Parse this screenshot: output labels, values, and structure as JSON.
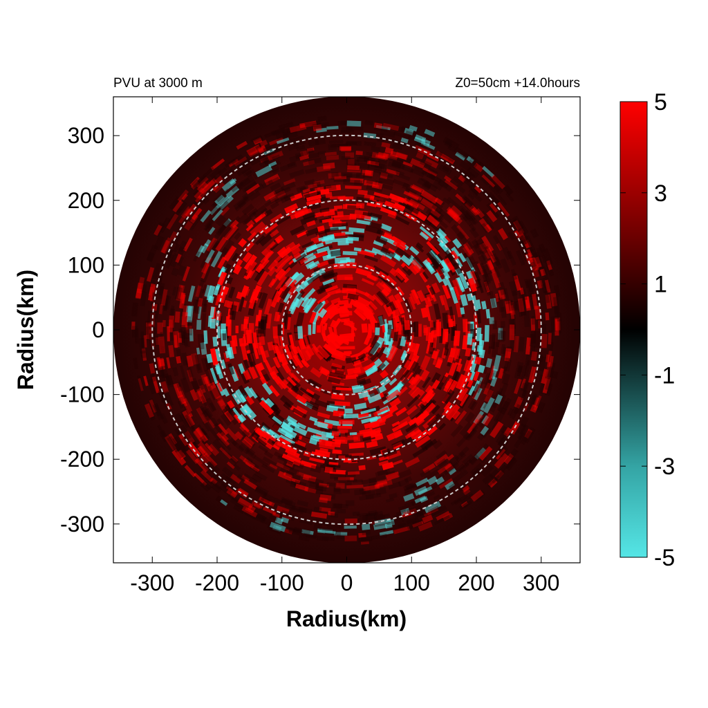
{
  "chart_data": {
    "type": "heatmap",
    "title_left": "PVU at  3000 m",
    "title_right": "Z0=50cm  +14.0hours",
    "xlabel": "Radius(km)",
    "ylabel": "Radius(km)",
    "xlim": [
      -360,
      360
    ],
    "ylim": [
      -360,
      360
    ],
    "x_ticks": [
      -300,
      -200,
      -100,
      0,
      100,
      200,
      300
    ],
    "y_ticks": [
      300,
      200,
      100,
      0,
      -100,
      -200,
      -300
    ],
    "domain_radius_km": 360,
    "reference_circles_km": [
      100,
      200,
      300
    ],
    "colorbar": {
      "min": -5,
      "max": 5,
      "ticks": [
        5,
        3,
        1,
        -1,
        -3,
        -5
      ],
      "colors": {
        "max": "#ff0000",
        "zero": "#000000",
        "min": "#55e6e6"
      }
    },
    "field_description": "Potential vorticity (PVU) with strong positive core near the center and spiral bands of alternating positive and negative values out to ~300 km"
  },
  "colors": {
    "positive": "#ff0000",
    "negative": "#55e6e6",
    "background_field": "#3a0505",
    "reference_circle": "#cccccc"
  }
}
